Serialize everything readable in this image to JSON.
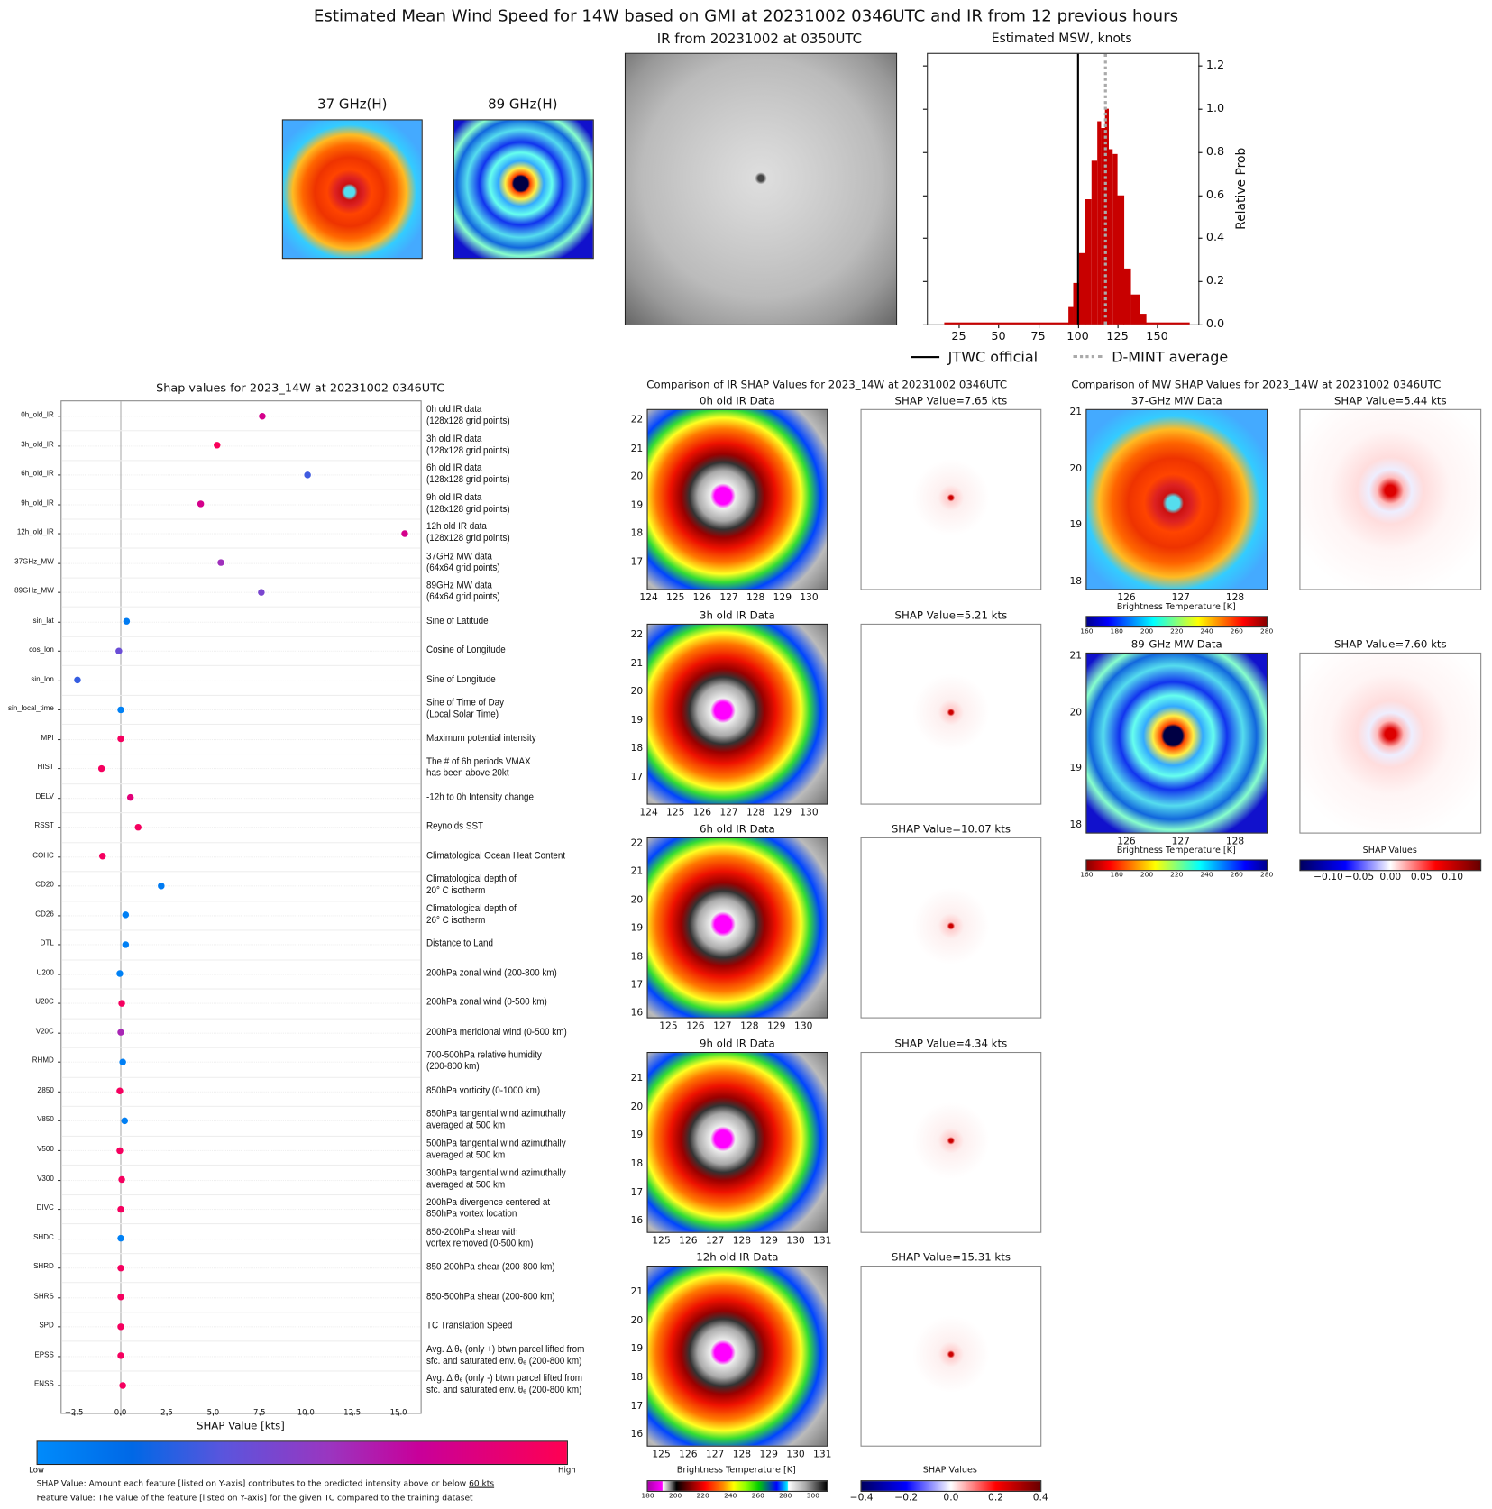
{
  "title": "Estimated Mean Wind Speed for 14W based on GMI at 20231002 0346UTC and IR from 12 previous hours",
  "top": {
    "mw37_label": "37 GHz(H)",
    "mw89_label": "89 GHz(H)",
    "ir_label": "IR from 20231002 at 0350UTC"
  },
  "chart_data": [
    {
      "type": "bar",
      "title": "Estimated MSW, knots",
      "xlabel": "",
      "ylabel": "Relative Prob",
      "xlim": [
        5.5,
        176
      ],
      "ylim": [
        0,
        1.254
      ],
      "xticks": [
        25,
        50,
        75,
        100,
        125,
        150
      ],
      "yticks": [
        "0.0",
        "0.2",
        "0.4",
        "0.6",
        "0.8",
        "1.0",
        "1.2"
      ],
      "bins": [
        {
          "x0": 15.6,
          "x1": 94.3,
          "value": 0.01
        },
        {
          "x0": 94.3,
          "x1": 97.1,
          "value": 0.08
        },
        {
          "x0": 97.1,
          "x1": 100.9,
          "value": 0.19
        },
        {
          "x0": 100.9,
          "x1": 104.7,
          "value": 0.33
        },
        {
          "x0": 104.7,
          "x1": 108.5,
          "value": 0.58
        },
        {
          "x0": 108.5,
          "x1": 112.0,
          "value": 0.76
        },
        {
          "x0": 112.0,
          "x1": 114.5,
          "value": 0.94
        },
        {
          "x0": 114.5,
          "x1": 117.3,
          "value": 0.91
        },
        {
          "x0": 117.3,
          "x1": 119.2,
          "value": 1.0
        },
        {
          "x0": 119.2,
          "x1": 121.7,
          "value": 0.81
        },
        {
          "x0": 121.7,
          "x1": 124.7,
          "value": 0.79
        },
        {
          "x0": 124.7,
          "x1": 128.9,
          "value": 0.6
        },
        {
          "x0": 128.9,
          "x1": 133.4,
          "value": 0.26
        },
        {
          "x0": 133.4,
          "x1": 138.7,
          "value": 0.14
        },
        {
          "x0": 138.7,
          "x1": 142.8,
          "value": 0.05
        },
        {
          "x0": 142.8,
          "x1": 170.2,
          "value": 0.01
        }
      ],
      "vlines": [
        {
          "name": "JTWC official",
          "x": 100,
          "style": "solid",
          "color": "#000000"
        },
        {
          "name": "D-MINT average",
          "x": 117,
          "style": "dotted",
          "color": "#aaaaaa"
        }
      ],
      "bar_color": "#c80000",
      "legend_position": "bottom"
    },
    {
      "type": "scatter",
      "title": "Shap values for 2023_14W at 20231002 0346UTC",
      "xlabel": "SHAP Value [kts]",
      "xlim": [
        -3.17,
        16.19
      ],
      "xticks": [
        "−2.5",
        "0.0",
        "2.5",
        "5.0",
        "7.5",
        "10.0",
        "12.5",
        "15.0"
      ],
      "xtick_values": [
        -2.5,
        0,
        2.5,
        5,
        7.5,
        10,
        12.5,
        15
      ],
      "colorbar": {
        "low": "Low",
        "high": "High"
      },
      "features": [
        {
          "name": "0h_old_IR",
          "shap": 7.65,
          "feature_value": 0.78,
          "desc": [
            "0h old IR data",
            "(128x128 grid points)"
          ]
        },
        {
          "name": "3h_old_IR",
          "shap": 5.21,
          "feature_value": 0.97,
          "desc": [
            "3h old IR data",
            "(128x128 grid points)"
          ]
        },
        {
          "name": "6h_old_IR",
          "shap": 10.07,
          "feature_value": 0.3,
          "desc": [
            "6h old IR data",
            "(128x128 grid points)"
          ]
        },
        {
          "name": "9h_old_IR",
          "shap": 4.34,
          "feature_value": 0.78,
          "desc": [
            "9h old IR data",
            "(128x128 grid points)"
          ]
        },
        {
          "name": "12h_old_IR",
          "shap": 15.31,
          "feature_value": 0.78,
          "desc": [
            "12h old IR data",
            "(128x128 grid points)"
          ]
        },
        {
          "name": "37GHz_MW",
          "shap": 5.44,
          "feature_value": 0.57,
          "desc": [
            "37GHz MW data",
            "(64x64 grid points)"
          ]
        },
        {
          "name": "89GHz_MW",
          "shap": 7.6,
          "feature_value": 0.45,
          "desc": [
            "89GHz MW data",
            "(64x64 grid points)"
          ]
        },
        {
          "name": "sin_lat",
          "shap": 0.35,
          "feature_value": 0.08,
          "desc": [
            "Sine of Latitude"
          ]
        },
        {
          "name": "cos_lon",
          "shap": -0.1,
          "feature_value": 0.4,
          "desc": [
            "Cosine of Longitude"
          ]
        },
        {
          "name": "sin_lon",
          "shap": -2.3,
          "feature_value": 0.28,
          "desc": [
            "Sine of Longitude"
          ]
        },
        {
          "name": "sin_local_time",
          "shap": 0.0,
          "feature_value": 0.05,
          "desc": [
            "Sine of Time of Day",
            "(Local Solar Time)"
          ]
        },
        {
          "name": "MPI",
          "shap": 0.0,
          "feature_value": 0.95,
          "desc": [
            "Maximum potential intensity"
          ]
        },
        {
          "name": "HIST",
          "shap": -1.0,
          "feature_value": 0.95,
          "desc": [
            "The # of 6h periods VMAX",
            "has been above 20kt"
          ]
        },
        {
          "name": "DELV",
          "shap": 0.55,
          "feature_value": 0.85,
          "desc": [
            "-12h to 0h Intensity change"
          ]
        },
        {
          "name": "RSST",
          "shap": 0.95,
          "feature_value": 0.95,
          "desc": [
            "Reynolds SST"
          ]
        },
        {
          "name": "COHC",
          "shap": -0.95,
          "feature_value": 0.95,
          "desc": [
            "Climatological Ocean Heat Content"
          ]
        },
        {
          "name": "CD20",
          "shap": 2.2,
          "feature_value": 0.08,
          "desc": [
            "Climatological depth of",
            "20° C isotherm"
          ]
        },
        {
          "name": "CD26",
          "shap": 0.3,
          "feature_value": 0.06,
          "desc": [
            "Climatological depth of",
            "26° C isotherm"
          ]
        },
        {
          "name": "DTL",
          "shap": 0.3,
          "feature_value": 0.06,
          "desc": [
            "Distance to Land"
          ]
        },
        {
          "name": "U200",
          "shap": -0.05,
          "feature_value": 0.05,
          "desc": [
            "200hPa zonal wind (200-800 km)"
          ]
        },
        {
          "name": "U20C",
          "shap": 0.05,
          "feature_value": 0.95,
          "desc": [
            "200hPa zonal wind (0-500 km)"
          ]
        },
        {
          "name": "V20C",
          "shap": 0.0,
          "feature_value": 0.6,
          "desc": [
            "200hPa meridional wind (0-500 km)"
          ]
        },
        {
          "name": "RHMD",
          "shap": 0.15,
          "feature_value": 0.06,
          "desc": [
            "700-500hPa relative humidity",
            "(200-800 km)"
          ]
        },
        {
          "name": "Z850",
          "shap": -0.05,
          "feature_value": 0.95,
          "desc": [
            "850hPa vorticity (0-1000 km)"
          ]
        },
        {
          "name": "V850",
          "shap": 0.25,
          "feature_value": 0.06,
          "desc": [
            "850hPa tangential wind azimuthally",
            "averaged at 500 km"
          ]
        },
        {
          "name": "V500",
          "shap": -0.05,
          "feature_value": 0.95,
          "desc": [
            "500hPa tangential wind azimuthally",
            "averaged at 500 km"
          ]
        },
        {
          "name": "V300",
          "shap": 0.05,
          "feature_value": 0.95,
          "desc": [
            "300hPa tangential wind azimuthally",
            "averaged at 500 km"
          ]
        },
        {
          "name": "DIVC",
          "shap": 0.0,
          "feature_value": 0.95,
          "desc": [
            "200hPa divergence centered at",
            "850hPa vortex location"
          ]
        },
        {
          "name": "SHDC",
          "shap": 0.0,
          "feature_value": 0.05,
          "desc": [
            "850-200hPa shear with",
            "vortex removed (0-500 km)"
          ]
        },
        {
          "name": "SHRD",
          "shap": 0.0,
          "feature_value": 0.95,
          "desc": [
            "850-200hPa shear (200-800 km)"
          ]
        },
        {
          "name": "SHRS",
          "shap": 0.0,
          "feature_value": 0.95,
          "desc": [
            "850-500hPa shear (200-800 km)"
          ]
        },
        {
          "name": "SPD",
          "shap": 0.0,
          "feature_value": 0.95,
          "desc": [
            "TC Translation Speed"
          ]
        },
        {
          "name": "EPSS",
          "shap": 0.0,
          "feature_value": 0.95,
          "desc": [
            "Avg. Δ θₑ (only +) btwn parcel lifted from",
            "sfc. and saturated env. θₑ (200-800 km)"
          ]
        },
        {
          "name": "ENSS",
          "shap": 0.1,
          "feature_value": 0.95,
          "desc": [
            "Avg. Δ θₑ (only -) btwn parcel lifted from",
            "sfc. and saturated env. θₑ (200-800 km)"
          ]
        }
      ]
    }
  ],
  "shap_notes": {
    "line1_prefix": "SHAP Value: Amount each feature [listed on Y-axis] contributes to the predicted intensity above or below ",
    "line1_underlined": "60 kts",
    "line2": "Feature Value: The value of the feature [listed on Y-axis] for the given TC compared to the training dataset"
  },
  "ir_comparison": {
    "title": "Comparison of IR SHAP Values for 2023_14W at 20231002 0346UTC",
    "rows": [
      {
        "title": "0h old IR Data",
        "shap_label": "SHAP Value=7.65 kts",
        "lat_ticks": [
          22,
          21,
          20,
          19,
          18,
          17
        ],
        "lat_range": [
          16.04,
          22.41
        ],
        "lon_ticks": [
          124,
          125,
          126,
          127,
          128,
          129,
          130
        ],
        "lon_range": [
          123.93,
          130.7
        ]
      },
      {
        "title": "3h old IR Data",
        "shap_label": "SHAP Value=5.21 kts",
        "lat_ticks": [
          22,
          21,
          20,
          19,
          18,
          17
        ],
        "lat_range": [
          16.04,
          22.41
        ],
        "lon_ticks": [
          124,
          125,
          126,
          127,
          128,
          129,
          130
        ],
        "lon_range": [
          123.93,
          130.7
        ]
      },
      {
        "title": "6h old IR Data",
        "shap_label": "SHAP Value=10.07 kts",
        "lat_ticks": [
          22,
          21,
          20,
          19,
          18,
          17,
          16
        ],
        "lat_range": [
          15.84,
          22.24
        ],
        "lon_ticks": [
          125,
          126,
          127,
          128,
          129,
          130
        ],
        "lon_range": [
          124.2,
          130.9
        ]
      },
      {
        "title": "9h old IR Data",
        "shap_label": "SHAP Value=4.34 kts",
        "lat_ticks": [
          21,
          20,
          19,
          18,
          17,
          16
        ],
        "lat_range": [
          15.6,
          21.95
        ],
        "lon_ticks": [
          125,
          126,
          127,
          128,
          129,
          130,
          131
        ],
        "lon_range": [
          124.46,
          131.2
        ]
      },
      {
        "title": "12h old IR Data",
        "shap_label": "SHAP Value=15.31 kts",
        "lat_ticks": [
          21,
          20,
          19,
          18,
          17,
          16
        ],
        "lat_range": [
          15.6,
          21.95
        ],
        "lon_ticks": [
          125,
          126,
          127,
          128,
          129,
          130,
          131
        ],
        "lon_range": [
          124.46,
          131.2
        ]
      }
    ],
    "bt_colorbar": {
      "label": "Brightness Temperature [K]",
      "ticks": [
        180,
        200,
        220,
        240,
        260,
        280,
        300
      ],
      "range": [
        180,
        310
      ]
    },
    "shap_colorbar": {
      "label": "SHAP Values",
      "ticks": [
        "−0.4",
        "−0.2",
        "0.0",
        "0.2",
        "0.4"
      ]
    }
  },
  "mw_comparison": {
    "title": "Comparison of MW SHAP Values for 2023_14W at 20231002 0346UTC",
    "rows": [
      {
        "title": "37-GHz MW Data",
        "shap_label": "SHAP Value=5.44 kts",
        "lat_ticks": [
          21,
          20,
          19,
          18
        ],
        "lat_range": [
          17.86,
          21.07
        ],
        "lon_ticks": [
          126,
          127,
          128
        ],
        "lon_range": [
          125.25,
          128.6
        ]
      },
      {
        "title": "89-GHz MW Data",
        "shap_label": "SHAP Value=7.60 kts",
        "lat_ticks": [
          21,
          20,
          19,
          18
        ],
        "lat_range": [
          17.86,
          21.07
        ],
        "lon_ticks": [
          126,
          127,
          128
        ],
        "lon_range": [
          125.25,
          128.6
        ]
      }
    ],
    "bt_colorbar": {
      "label": "Brightness Temperature [K]",
      "ticks": [
        160,
        180,
        200,
        220,
        240,
        260,
        280
      ],
      "range": [
        160,
        280
      ]
    },
    "shap_colorbar": {
      "label": "SHAP Values",
      "ticks": [
        "−0.10",
        "−0.05",
        "0.00",
        "0.05",
        "0.10"
      ],
      "values": [
        -0.1,
        -0.05,
        0,
        0.05,
        0.1
      ],
      "range": [
        -0.145,
        0.145
      ]
    }
  }
}
